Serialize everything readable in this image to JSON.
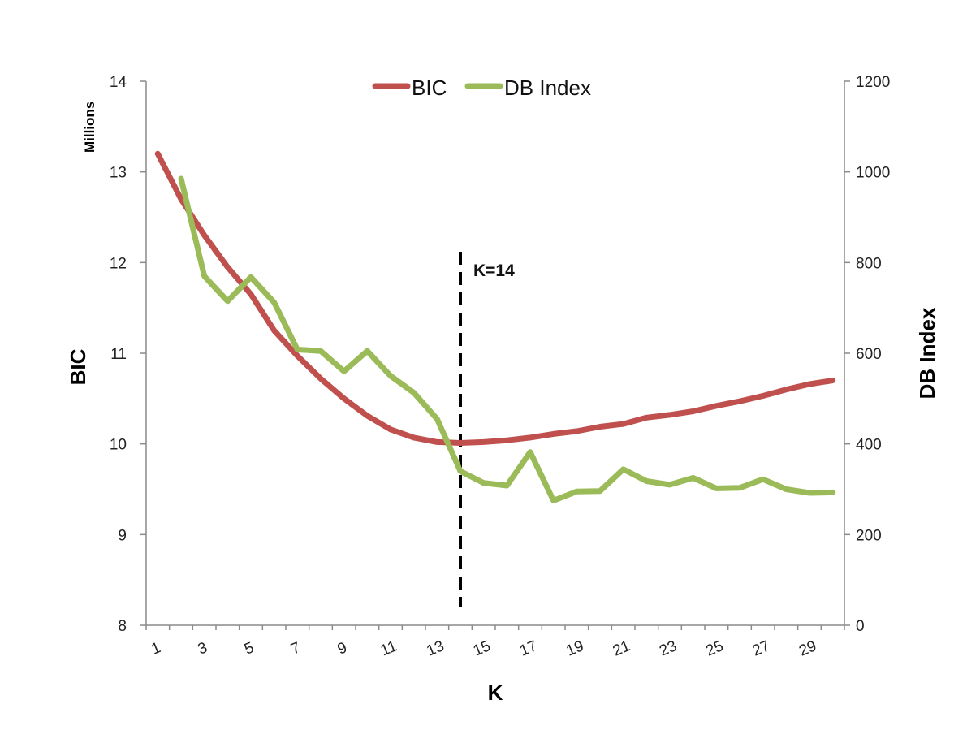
{
  "chart_data": {
    "type": "line",
    "title": "",
    "xlabel": "K",
    "ylabel": "BIC",
    "ylabel_units": "Millions",
    "y2label": "DB Index",
    "x_tick_labels": [
      "1",
      "3",
      "5",
      "7",
      "9",
      "11",
      "13",
      "15",
      "17",
      "19",
      "21",
      "23",
      "25",
      "27",
      "29"
    ],
    "y_tick_labels": [
      "8",
      "9",
      "10",
      "11",
      "12",
      "13",
      "14"
    ],
    "y2_tick_labels": [
      "0",
      "200",
      "400",
      "600",
      "800",
      "1000",
      "1200"
    ],
    "ylim": [
      8,
      14
    ],
    "y2lim": [
      0,
      1200
    ],
    "xlim": [
      1,
      30
    ],
    "grid": false,
    "legend_position": "top-center",
    "series": [
      {
        "name": "BIC",
        "axis": "left",
        "color": "#c0504d",
        "x": [
          1,
          2,
          3,
          4,
          5,
          6,
          7,
          8,
          9,
          10,
          11,
          12,
          13,
          14,
          15,
          16,
          17,
          18,
          19,
          20,
          21,
          22,
          23,
          24,
          25,
          26,
          27,
          28,
          29,
          30
        ],
        "values": [
          13.2,
          12.7,
          12.3,
          11.95,
          11.65,
          11.25,
          10.97,
          10.72,
          10.5,
          10.31,
          10.16,
          10.07,
          10.02,
          10.01,
          10.02,
          10.04,
          10.07,
          10.11,
          10.14,
          10.19,
          10.22,
          10.29,
          10.32,
          10.36,
          10.42,
          10.47,
          10.53,
          10.6,
          10.66,
          10.7
        ]
      },
      {
        "name": "DB Index",
        "axis": "right",
        "color": "#9bbb59",
        "x": [
          2,
          3,
          4,
          5,
          6,
          7,
          8,
          9,
          10,
          11,
          12,
          13,
          14,
          15,
          16,
          17,
          18,
          19,
          20,
          21,
          22,
          23,
          24,
          25,
          26,
          27,
          28,
          29,
          30
        ],
        "values": [
          985,
          770,
          715,
          768,
          712,
          608,
          605,
          560,
          605,
          550,
          513,
          455,
          340,
          314,
          308,
          382,
          275,
          295,
          296,
          344,
          318,
          310,
          325,
          302,
          303,
          322,
          300,
          292,
          293
        ]
      }
    ],
    "annotations": [
      {
        "text": "K=14",
        "x": 14,
        "style": "dashed-vertical-line"
      }
    ]
  }
}
